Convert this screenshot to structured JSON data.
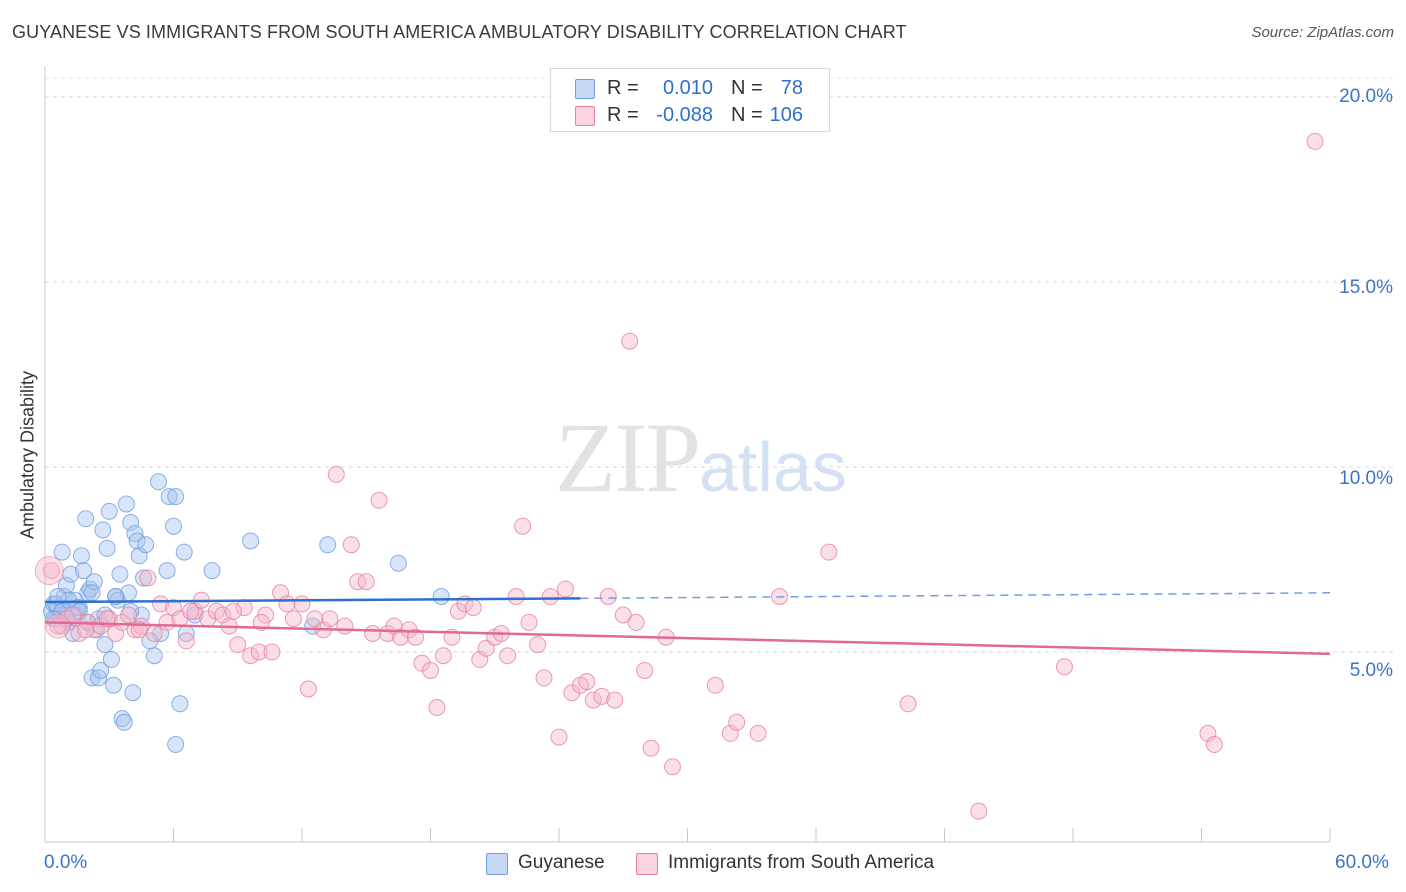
{
  "header": {
    "title": "GUYANESE VS IMMIGRANTS FROM SOUTH AMERICA AMBULATORY DISABILITY CORRELATION CHART",
    "source": "Source: ZipAtlas.com"
  },
  "legend": {
    "rows": [
      {
        "r_label": "R =",
        "r_value": "0.010",
        "n_label": "N =",
        "n_value": "78",
        "color": "#a9c4ee"
      },
      {
        "r_label": "R =",
        "r_value": "-0.088",
        "n_label": "N =",
        "n_value": "106",
        "color": "#f4b8cb"
      }
    ]
  },
  "watermark": {
    "zip": "ZIP",
    "atlas": "atlas"
  },
  "chart_data": {
    "type": "scatter",
    "title": "GUYANESE VS IMMIGRANTS FROM SOUTH AMERICA AMBULATORY DISABILITY CORRELATION CHART",
    "xlabel": "",
    "ylabel": "Ambulatory Disability",
    "xlim": [
      0,
      60
    ],
    "ylim": [
      0,
      20.5
    ],
    "x_tick_labels": [
      "0.0%",
      "60.0%"
    ],
    "y_ticks": [
      5,
      10,
      15,
      20
    ],
    "y_tick_labels": [
      "5.0%",
      "10.0%",
      "15.0%",
      "20.0%"
    ],
    "grid": true,
    "series": [
      {
        "name": "Guyanese",
        "color": "#6f9ee0",
        "fill": "#a9c4ee",
        "trend": {
          "x": [
            0,
            25
          ],
          "y": [
            6.35,
            6.45
          ],
          "dashed_to": [
            60,
            6.6
          ]
        },
        "points": [
          [
            0.3,
            6.1
          ],
          [
            0.4,
            6.3
          ],
          [
            0.5,
            5.9
          ],
          [
            0.6,
            6.2
          ],
          [
            0.7,
            6.0
          ],
          [
            0.8,
            7.7
          ],
          [
            0.9,
            6.5
          ],
          [
            1.0,
            6.8
          ],
          [
            1.1,
            5.8
          ],
          [
            1.2,
            7.1
          ],
          [
            1.3,
            5.5
          ],
          [
            1.4,
            6.4
          ],
          [
            1.5,
            6.0
          ],
          [
            1.6,
            6.2
          ],
          [
            1.7,
            7.6
          ],
          [
            1.8,
            7.2
          ],
          [
            1.9,
            8.6
          ],
          [
            2.0,
            6.6
          ],
          [
            2.1,
            6.7
          ],
          [
            2.2,
            4.3
          ],
          [
            2.3,
            6.9
          ],
          [
            2.4,
            5.6
          ],
          [
            2.5,
            4.3
          ],
          [
            2.6,
            4.5
          ],
          [
            2.7,
            8.3
          ],
          [
            2.8,
            5.2
          ],
          [
            2.9,
            7.8
          ],
          [
            3.0,
            8.8
          ],
          [
            3.1,
            4.8
          ],
          [
            3.2,
            4.1
          ],
          [
            3.3,
            6.5
          ],
          [
            3.4,
            6.4
          ],
          [
            3.5,
            7.1
          ],
          [
            3.6,
            3.2
          ],
          [
            3.7,
            3.1
          ],
          [
            3.8,
            9.0
          ],
          [
            3.9,
            6.6
          ],
          [
            4.0,
            8.5
          ],
          [
            4.1,
            3.9
          ],
          [
            4.2,
            8.2
          ],
          [
            4.3,
            8.0
          ],
          [
            4.4,
            7.6
          ],
          [
            4.5,
            6.0
          ],
          [
            4.6,
            7.0
          ],
          [
            4.7,
            7.9
          ],
          [
            5.1,
            4.9
          ],
          [
            5.3,
            9.6
          ],
          [
            5.4,
            5.5
          ],
          [
            5.7,
            7.2
          ],
          [
            5.8,
            9.2
          ],
          [
            6.0,
            8.4
          ],
          [
            6.1,
            9.2
          ],
          [
            6.3,
            3.6
          ],
          [
            6.5,
            7.7
          ],
          [
            6.6,
            5.5
          ],
          [
            7.0,
            6.0
          ],
          [
            7.8,
            7.2
          ],
          [
            9.6,
            8.0
          ],
          [
            12.5,
            5.7
          ],
          [
            13.2,
            7.9
          ],
          [
            16.5,
            7.4
          ],
          [
            18.5,
            6.5
          ],
          [
            0.5,
            6.3
          ],
          [
            0.8,
            6.1
          ],
          [
            1.1,
            6.4
          ],
          [
            1.5,
            6.2
          ],
          [
            2.0,
            5.8
          ],
          [
            2.5,
            5.9
          ],
          [
            3.3,
            6.5
          ],
          [
            1.0,
            5.9
          ],
          [
            2.2,
            6.6
          ],
          [
            0.6,
            6.5
          ],
          [
            6.1,
            2.5
          ],
          [
            4.9,
            5.3
          ],
          [
            1.6,
            6.1
          ],
          [
            2.8,
            6.0
          ],
          [
            0.4,
            5.9
          ],
          [
            4.0,
            6.1
          ]
        ]
      },
      {
        "name": "Immigrants from South America",
        "color": "#e97fa2",
        "fill": "#f4b8cb",
        "trend": {
          "x": [
            0,
            60
          ],
          "y": [
            5.8,
            4.95
          ]
        },
        "points": [
          [
            0.3,
            7.2
          ],
          [
            0.8,
            5.7
          ],
          [
            1.0,
            5.9
          ],
          [
            1.3,
            6.0
          ],
          [
            1.6,
            5.5
          ],
          [
            2.0,
            5.8
          ],
          [
            2.3,
            5.6
          ],
          [
            2.6,
            5.7
          ],
          [
            3.0,
            5.9
          ],
          [
            3.3,
            5.5
          ],
          [
            3.6,
            5.8
          ],
          [
            3.9,
            6.0
          ],
          [
            4.2,
            5.6
          ],
          [
            4.5,
            5.7
          ],
          [
            4.8,
            7.0
          ],
          [
            5.1,
            5.5
          ],
          [
            5.4,
            6.3
          ],
          [
            5.7,
            5.8
          ],
          [
            6.0,
            6.2
          ],
          [
            6.3,
            5.9
          ],
          [
            6.6,
            5.3
          ],
          [
            7.0,
            6.1
          ],
          [
            7.3,
            6.4
          ],
          [
            7.6,
            5.9
          ],
          [
            8.0,
            6.1
          ],
          [
            8.3,
            6.0
          ],
          [
            8.6,
            5.7
          ],
          [
            9.0,
            5.2
          ],
          [
            9.3,
            6.2
          ],
          [
            9.6,
            4.9
          ],
          [
            10.0,
            5.0
          ],
          [
            10.3,
            6.0
          ],
          [
            10.6,
            5.0
          ],
          [
            11.0,
            6.6
          ],
          [
            11.3,
            6.3
          ],
          [
            11.6,
            5.9
          ],
          [
            12.0,
            6.3
          ],
          [
            12.3,
            4.0
          ],
          [
            12.6,
            5.9
          ],
          [
            13.0,
            5.6
          ],
          [
            13.3,
            5.9
          ],
          [
            13.6,
            9.8
          ],
          [
            14.0,
            5.7
          ],
          [
            14.3,
            7.9
          ],
          [
            14.6,
            6.9
          ],
          [
            15.0,
            6.9
          ],
          [
            15.3,
            5.5
          ],
          [
            15.6,
            9.1
          ],
          [
            16.0,
            5.5
          ],
          [
            16.3,
            5.7
          ],
          [
            16.6,
            5.4
          ],
          [
            17.0,
            5.6
          ],
          [
            17.3,
            5.4
          ],
          [
            17.6,
            4.7
          ],
          [
            18.0,
            4.5
          ],
          [
            18.3,
            3.5
          ],
          [
            18.6,
            4.9
          ],
          [
            19.0,
            5.4
          ],
          [
            19.3,
            6.1
          ],
          [
            19.6,
            6.3
          ],
          [
            20.0,
            6.2
          ],
          [
            20.3,
            4.8
          ],
          [
            20.6,
            5.1
          ],
          [
            21.0,
            5.4
          ],
          [
            21.3,
            5.5
          ],
          [
            21.6,
            4.9
          ],
          [
            22.0,
            6.5
          ],
          [
            22.3,
            8.4
          ],
          [
            22.6,
            5.8
          ],
          [
            23.0,
            5.2
          ],
          [
            23.3,
            4.3
          ],
          [
            23.6,
            6.5
          ],
          [
            24.0,
            2.7
          ],
          [
            24.3,
            6.7
          ],
          [
            24.6,
            3.9
          ],
          [
            25.0,
            4.1
          ],
          [
            25.3,
            4.2
          ],
          [
            25.6,
            3.7
          ],
          [
            26.0,
            3.8
          ],
          [
            26.3,
            6.5
          ],
          [
            26.6,
            3.7
          ],
          [
            27.0,
            6.0
          ],
          [
            27.3,
            13.4
          ],
          [
            27.6,
            5.8
          ],
          [
            28.0,
            4.5
          ],
          [
            28.3,
            2.4
          ],
          [
            29.0,
            5.4
          ],
          [
            29.3,
            1.9
          ],
          [
            31.3,
            4.1
          ],
          [
            32.0,
            2.8
          ],
          [
            32.3,
            3.1
          ],
          [
            33.3,
            2.8
          ],
          [
            34.3,
            6.5
          ],
          [
            36.6,
            7.7
          ],
          [
            40.3,
            3.6
          ],
          [
            43.6,
            0.7
          ],
          [
            47.6,
            4.6
          ],
          [
            54.3,
            2.8
          ],
          [
            54.6,
            2.5
          ],
          [
            59.3,
            18.8
          ],
          [
            0.6,
            5.7
          ],
          [
            1.9,
            5.6
          ],
          [
            2.9,
            5.9
          ],
          [
            4.4,
            5.6
          ],
          [
            6.8,
            6.1
          ],
          [
            8.8,
            6.1
          ],
          [
            10.1,
            5.8
          ]
        ]
      }
    ],
    "legend_placement": "top-center"
  }
}
